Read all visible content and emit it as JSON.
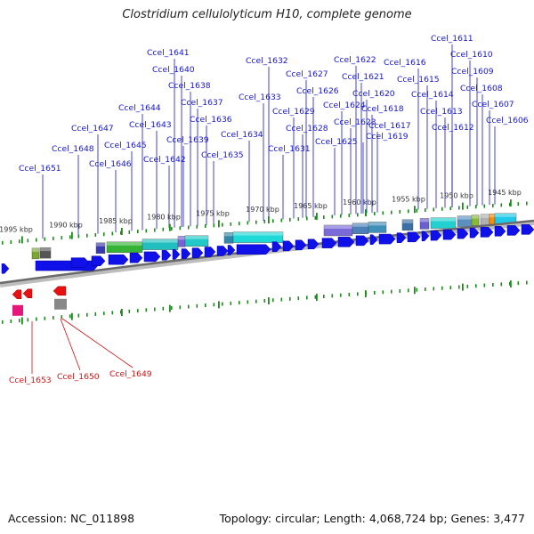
{
  "title": "Clostridium cellulolyticum H10, complete genome",
  "footer": {
    "accession": "Accession: NC_011898",
    "topology": "Topology: circular; Length: 4,068,724 bp; Genes: 3,477"
  },
  "colors": {
    "gene_forward": "#1010e8",
    "gene_reverse": "#e81010",
    "label_forward": "#1515cc",
    "label_reverse": "#cc1111",
    "tick": "#1e8a1e",
    "axis": "#777777"
  },
  "scale_labels": [
    "1995 kbp",
    "1990 kbp",
    "1985 kbp",
    "1980 kbp",
    "1975 kbp",
    "1970 kbp",
    "1965 kbp",
    "1960 kbp",
    "1955 kbp",
    "1950 kbp",
    "1945 kbp"
  ],
  "forward_gene_labels": [
    "Ccel_1611",
    "Ccel_1610",
    "Ccel_1609",
    "Ccel_1608",
    "Ccel_1607",
    "Ccel_1606",
    "Ccel_1616",
    "Ccel_1615",
    "Ccel_1614",
    "Ccel_1613",
    "Ccel_1612",
    "Ccel_1622",
    "Ccel_1621",
    "Ccel_1620",
    "Ccel_1618",
    "Ccel_1617",
    "Ccel_1619",
    "Ccel_1624",
    "Ccel_1623",
    "Ccel_1625",
    "Ccel_1627",
    "Ccel_1626",
    "Ccel_1629",
    "Ccel_1628",
    "Ccel_1632",
    "Ccel_1633",
    "Ccel_1634",
    "Ccel_1631",
    "Ccel_1641",
    "Ccel_1640",
    "Ccel_1638",
    "Ccel_1637",
    "Ccel_1636",
    "Ccel_1644",
    "Ccel_1643",
    "Ccel_1639",
    "Ccel_1635",
    "Ccel_1642",
    "Ccel_1647",
    "Ccel_1645",
    "Ccel_1648",
    "Ccel_1646",
    "Ccel_1651"
  ],
  "reverse_gene_labels": [
    "Ccel_1653",
    "Ccel_1650",
    "Ccel_1649"
  ]
}
